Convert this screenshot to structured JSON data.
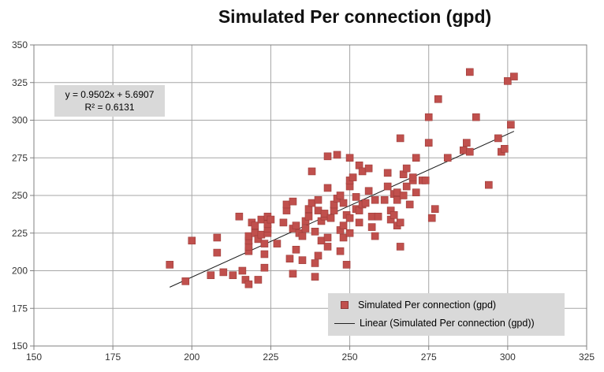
{
  "chart_data": {
    "type": "scatter",
    "title": "Simulated Per connection (gpd)",
    "xlim": [
      150,
      325
    ],
    "ylim": [
      150,
      350
    ],
    "x_ticks": [
      150,
      175,
      200,
      225,
      250,
      275,
      300,
      325
    ],
    "y_ticks": [
      150,
      175,
      200,
      225,
      250,
      275,
      300,
      325,
      350
    ],
    "grid": true,
    "legend_position": "bottom-right",
    "marker_color": "#c0504d",
    "series": [
      {
        "name": "Simulated Per connection (gpd)",
        "points": [
          [
            193,
            204
          ],
          [
            198,
            193
          ],
          [
            200,
            220
          ],
          [
            206,
            197
          ],
          [
            208,
            212
          ],
          [
            208,
            222
          ],
          [
            210,
            199
          ],
          [
            213,
            197
          ],
          [
            215,
            236
          ],
          [
            216,
            200
          ],
          [
            217,
            194
          ],
          [
            218,
            191
          ],
          [
            218,
            213
          ],
          [
            218,
            216
          ],
          [
            218,
            220
          ],
          [
            218,
            223
          ],
          [
            219,
            232
          ],
          [
            220,
            225
          ],
          [
            220,
            230
          ],
          [
            221,
            221
          ],
          [
            221,
            194
          ],
          [
            222,
            234
          ],
          [
            222,
            224
          ],
          [
            223,
            202
          ],
          [
            223,
            211
          ],
          [
            223,
            218
          ],
          [
            224,
            225
          ],
          [
            224,
            228
          ],
          [
            224,
            231
          ],
          [
            224,
            236
          ],
          [
            225,
            234
          ],
          [
            227,
            218
          ],
          [
            229,
            232
          ],
          [
            230,
            240
          ],
          [
            230,
            244
          ],
          [
            231,
            208
          ],
          [
            232,
            198
          ],
          [
            232,
            228
          ],
          [
            232,
            246
          ],
          [
            233,
            214
          ],
          [
            233,
            230
          ],
          [
            234,
            225
          ],
          [
            235,
            223
          ],
          [
            235,
            207
          ],
          [
            236,
            228
          ],
          [
            236,
            233
          ],
          [
            237,
            236
          ],
          [
            237,
            241
          ],
          [
            238,
            266
          ],
          [
            238,
            245
          ],
          [
            239,
            226
          ],
          [
            239,
            196
          ],
          [
            239,
            205
          ],
          [
            240,
            210
          ],
          [
            240,
            247
          ],
          [
            240,
            240
          ],
          [
            241,
            220
          ],
          [
            241,
            233
          ],
          [
            242,
            236
          ],
          [
            242,
            238
          ],
          [
            243,
            216
          ],
          [
            243,
            222
          ],
          [
            243,
            255
          ],
          [
            243,
            276
          ],
          [
            244,
            235
          ],
          [
            245,
            240
          ],
          [
            245,
            244
          ],
          [
            246,
            248
          ],
          [
            246,
            277
          ],
          [
            247,
            213
          ],
          [
            247,
            227
          ],
          [
            247,
            250
          ],
          [
            248,
            245
          ],
          [
            248,
            230
          ],
          [
            248,
            222
          ],
          [
            249,
            237
          ],
          [
            249,
            204
          ],
          [
            250,
            225
          ],
          [
            250,
            256
          ],
          [
            250,
            260
          ],
          [
            250,
            235
          ],
          [
            250,
            275
          ],
          [
            251,
            262
          ],
          [
            252,
            249
          ],
          [
            252,
            241
          ],
          [
            253,
            232
          ],
          [
            253,
            270
          ],
          [
            253,
            240
          ],
          [
            254,
            244
          ],
          [
            254,
            266
          ],
          [
            255,
            245
          ],
          [
            256,
            268
          ],
          [
            256,
            253
          ],
          [
            257,
            236
          ],
          [
            257,
            229
          ],
          [
            258,
            223
          ],
          [
            258,
            247
          ],
          [
            259,
            236
          ],
          [
            261,
            247
          ],
          [
            262,
            256
          ],
          [
            262,
            265
          ],
          [
            263,
            240
          ],
          [
            263,
            234
          ],
          [
            264,
            251
          ],
          [
            264,
            237
          ],
          [
            265,
            230
          ],
          [
            265,
            247
          ],
          [
            265,
            252
          ],
          [
            266,
            288
          ],
          [
            266,
            232
          ],
          [
            266,
            216
          ],
          [
            267,
            250
          ],
          [
            267,
            264
          ],
          [
            268,
            268
          ],
          [
            268,
            256
          ],
          [
            269,
            244
          ],
          [
            270,
            260
          ],
          [
            270,
            262
          ],
          [
            271,
            275
          ],
          [
            271,
            252
          ],
          [
            273,
            260
          ],
          [
            274,
            260
          ],
          [
            275,
            302
          ],
          [
            275,
            285
          ],
          [
            276,
            235
          ],
          [
            277,
            241
          ],
          [
            278,
            314
          ],
          [
            281,
            275
          ],
          [
            286,
            280
          ],
          [
            287,
            285
          ],
          [
            288,
            332
          ],
          [
            288,
            279
          ],
          [
            290,
            302
          ],
          [
            294,
            257
          ],
          [
            297,
            288
          ],
          [
            298,
            279
          ],
          [
            299,
            281
          ],
          [
            300,
            326
          ],
          [
            301,
            297
          ],
          [
            302,
            329
          ]
        ]
      },
      {
        "name": "Linear (Simulated Per connection (gpd))",
        "trend": {
          "slope": 0.9502,
          "intercept": 5.6907,
          "x_range": [
            193,
            302
          ]
        }
      }
    ],
    "annotations": {
      "equation": "y = 0.9502x + 5.6907",
      "r_squared": "R² = 0.6131"
    }
  }
}
